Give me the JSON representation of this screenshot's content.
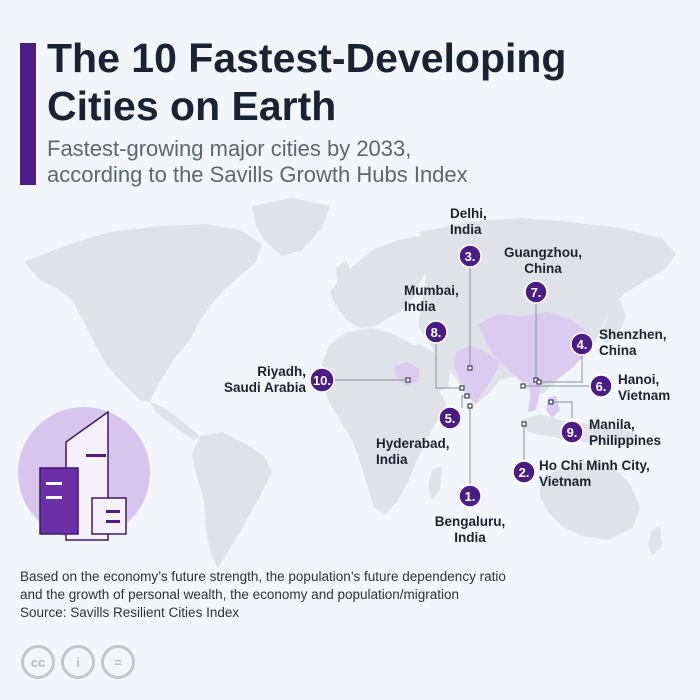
{
  "header": {
    "title_lines": [
      "The 10 Fastest-Developing",
      "Cities on Earth"
    ],
    "subtitle_lines": [
      "Fastest-growing major cities by 2033,",
      "according to the Savills Growth Hubs Index"
    ]
  },
  "cities": [
    {
      "rank": "1.",
      "name": "Bengaluru,",
      "country": "India"
    },
    {
      "rank": "2.",
      "name": "Ho Chi Minh City,",
      "country": "Vietnam"
    },
    {
      "rank": "3.",
      "name": "Delhi,",
      "country": "India"
    },
    {
      "rank": "4.",
      "name": "Shenzhen,",
      "country": "China"
    },
    {
      "rank": "5.",
      "name": "Hyderabad,",
      "country": "India"
    },
    {
      "rank": "6.",
      "name": "Hanoi,",
      "country": "Vietnam"
    },
    {
      "rank": "7.",
      "name": "Guangzhou,",
      "country": "China"
    },
    {
      "rank": "8.",
      "name": "Mumbai,",
      "country": "India"
    },
    {
      "rank": "9.",
      "name": "Manila,",
      "country": "Philippines"
    },
    {
      "rank": "10.",
      "name": "Riyadh,",
      "country": "Saudi Arabia"
    }
  ],
  "notes": {
    "method_lines": [
      "Based on the economy’s future strength, the population’s future dependency ratio",
      "and the growth of personal wealth, the economy and population/migration"
    ],
    "source": "Source: Savills Resilient Cities Index"
  },
  "license": {
    "cc": "cc",
    "by": "i",
    "nd": "="
  },
  "colors": {
    "accent": "#4b1d84",
    "highlight_country": "#dccbf1",
    "land": "#dfe2e7",
    "background": "#f2f5f9"
  },
  "icons": [
    "buildings-illustration-icon",
    "cc-license-icon",
    "attribution-icon",
    "no-derivatives-icon"
  ]
}
